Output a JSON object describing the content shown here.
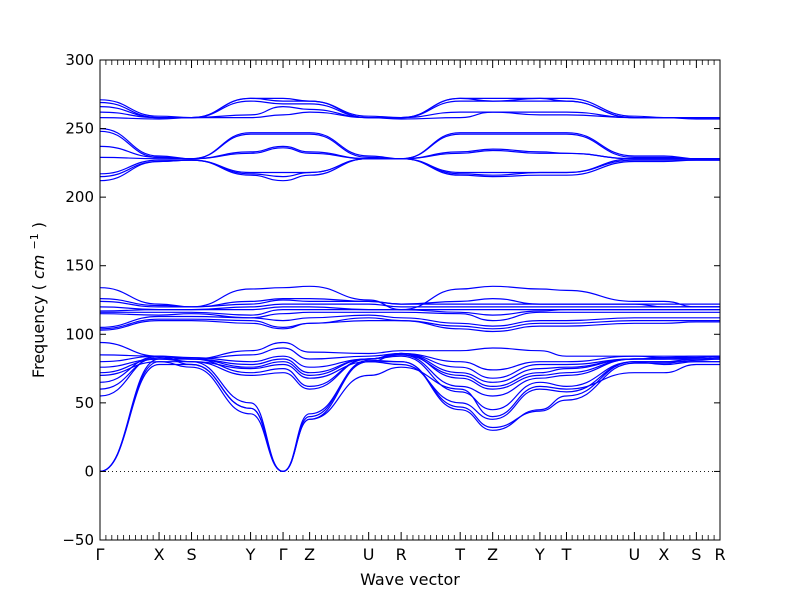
{
  "chart_data": {
    "type": "line",
    "xlabel": "Wave vector",
    "ylabel": "Frequency",
    "ylabel_unit": "cm",
    "ylabel_unit_exp": "−1",
    "ylim": [
      -50,
      300
    ],
    "yticks": [
      "−50",
      "0",
      "50",
      "100",
      "150",
      "200",
      "250",
      "300"
    ],
    "ytick_values": [
      -50,
      0,
      50,
      100,
      150,
      200,
      250,
      300
    ],
    "xlim": [
      0,
      21
    ],
    "high_symmetry_points": [
      {
        "label": "Γ",
        "x": 0
      },
      {
        "label": "X",
        "x": 2
      },
      {
        "label": "S",
        "x": 3.1
      },
      {
        "label": "Y",
        "x": 5.1
      },
      {
        "label": "Γ",
        "x": 6.2
      },
      {
        "label": "Z",
        "x": 7.1
      },
      {
        "label": "U",
        "x": 9.1
      },
      {
        "label": "R",
        "x": 10.2
      },
      {
        "label": "T",
        "x": 12.2
      },
      {
        "label": "Z",
        "x": 13.3
      },
      {
        "label": "Y",
        "x": 14.9
      },
      {
        "label": "T",
        "x": 15.8
      },
      {
        "label": "U",
        "x": 18.1
      },
      {
        "label": "X",
        "x": 19.1
      },
      {
        "label": "S",
        "x": 20.2
      },
      {
        "label": "R",
        "x": 21
      }
    ],
    "zero_line": true,
    "line_color": "#0000ff",
    "series": [
      {
        "values": [
          0,
          80,
          76,
          42,
          0,
          38,
          80,
          80,
          45,
          30,
          45,
          55,
          80,
          78,
          80,
          80
        ]
      },
      {
        "values": [
          0,
          78,
          78,
          46,
          0,
          40,
          81,
          80,
          47,
          32,
          44,
          52,
          79,
          79,
          81,
          82
        ]
      },
      {
        "values": [
          0,
          82,
          80,
          50,
          0,
          42,
          80,
          78,
          50,
          38,
          60,
          58,
          80,
          80,
          82,
          83
        ]
      },
      {
        "values": [
          55,
          84,
          78,
          46,
          0,
          38,
          70,
          76,
          60,
          40,
          62,
          60,
          72,
          72,
          78,
          78
        ]
      },
      {
        "values": [
          60,
          83,
          80,
          70,
          72,
          60,
          82,
          84,
          58,
          45,
          65,
          62,
          80,
          80,
          80,
          80
        ]
      },
      {
        "values": [
          65,
          84,
          82,
          72,
          75,
          62,
          82,
          85,
          62,
          55,
          68,
          70,
          82,
          82,
          82,
          82
        ]
      },
      {
        "values": [
          70,
          80,
          80,
          75,
          78,
          68,
          80,
          86,
          68,
          60,
          70,
          72,
          82,
          82,
          82,
          82
        ]
      },
      {
        "values": [
          72,
          82,
          82,
          76,
          80,
          70,
          82,
          85,
          70,
          62,
          72,
          75,
          82,
          83,
          83,
          84
        ]
      },
      {
        "values": [
          76,
          82,
          82,
          78,
          82,
          72,
          82,
          86,
          72,
          65,
          75,
          76,
          82,
          82,
          83,
          84
        ]
      },
      {
        "values": [
          80,
          84,
          83,
          80,
          84,
          76,
          82,
          86,
          76,
          68,
          78,
          78,
          82,
          82,
          82,
          82
        ]
      },
      {
        "values": [
          85,
          84,
          82,
          85,
          90,
          82,
          84,
          86,
          80,
          74,
          80,
          80,
          84,
          83,
          84,
          84
        ]
      },
      {
        "values": [
          94,
          84,
          82,
          88,
          94,
          87,
          86,
          88,
          88,
          90,
          88,
          84,
          84,
          84,
          84,
          84
        ]
      },
      {
        "values": [
          103,
          110,
          110,
          108,
          104,
          108,
          110,
          110,
          104,
          102,
          106,
          106,
          108,
          108,
          109,
          109
        ]
      },
      {
        "values": [
          104,
          111,
          111,
          110,
          105,
          108,
          112,
          110,
          106,
          104,
          108,
          108,
          110,
          110,
          110,
          110
        ]
      },
      {
        "values": [
          105,
          113,
          113,
          112,
          110,
          112,
          114,
          112,
          108,
          106,
          110,
          110,
          112,
          112,
          112,
          112
        ]
      },
      {
        "values": [
          115,
          114,
          115,
          112,
          115,
          116,
          116,
          116,
          115,
          110,
          116,
          116,
          116,
          116,
          116,
          116
        ]
      },
      {
        "values": [
          116,
          116,
          116,
          114,
          118,
          118,
          118,
          118,
          116,
          114,
          117,
          118,
          118,
          118,
          118,
          118
        ]
      },
      {
        "values": [
          117,
          118,
          118,
          118,
          120,
          120,
          118,
          118,
          118,
          118,
          118,
          118,
          118,
          118,
          118,
          118
        ]
      },
      {
        "values": [
          120,
          118,
          118,
          120,
          122,
          122,
          122,
          120,
          120,
          120,
          120,
          120,
          120,
          120,
          120,
          120
        ]
      },
      {
        "values": [
          124,
          120,
          120,
          122,
          125,
          124,
          124,
          122,
          122,
          122,
          122,
          122,
          122,
          122,
          122,
          122
        ]
      },
      {
        "values": [
          126,
          121,
          120,
          124,
          126,
          126,
          124,
          122,
          124,
          126,
          122,
          122,
          122,
          120,
          120,
          120
        ]
      },
      {
        "values": [
          134,
          122,
          120,
          133,
          134,
          135,
          125,
          118,
          133,
          135,
          133,
          132,
          124,
          124,
          120,
          120
        ]
      },
      {
        "values": [
          212,
          226,
          227,
          216,
          212,
          216,
          228,
          228,
          216,
          215,
          216,
          216,
          226,
          226,
          227,
          227
        ]
      },
      {
        "values": [
          215,
          226,
          227,
          217,
          215,
          218,
          228,
          228,
          217,
          216,
          218,
          218,
          227,
          227,
          227,
          227
        ]
      },
      {
        "values": [
          217,
          227,
          227,
          218,
          218,
          218,
          228,
          228,
          218,
          218,
          218,
          218,
          228,
          228,
          228,
          228
        ]
      },
      {
        "values": [
          229,
          228,
          228,
          232,
          236,
          232,
          228,
          228,
          232,
          234,
          232,
          232,
          228,
          228,
          228,
          228
        ]
      },
      {
        "values": [
          237,
          229,
          228,
          233,
          237,
          233,
          228,
          228,
          233,
          235,
          233,
          232,
          228,
          228,
          228,
          228
        ]
      },
      {
        "values": [
          248,
          229,
          228,
          246,
          246,
          246,
          229,
          228,
          246,
          246,
          246,
          246,
          229,
          229,
          228,
          228
        ]
      },
      {
        "values": [
          250,
          230,
          228,
          247,
          247,
          247,
          230,
          228,
          247,
          247,
          247,
          247,
          230,
          230,
          228,
          228
        ]
      },
      {
        "values": [
          258,
          257,
          258,
          258,
          260,
          262,
          258,
          257,
          258,
          262,
          260,
          260,
          258,
          258,
          257,
          257
        ]
      },
      {
        "values": [
          262,
          258,
          258,
          260,
          266,
          264,
          258,
          258,
          262,
          262,
          262,
          262,
          258,
          258,
          258,
          258
        ]
      },
      {
        "values": [
          266,
          258,
          258,
          270,
          268,
          268,
          258,
          258,
          270,
          270,
          270,
          270,
          258,
          258,
          258,
          258
        ]
      },
      {
        "values": [
          269,
          258,
          258,
          272,
          270,
          270,
          258,
          258,
          272,
          270,
          272,
          270,
          258,
          258,
          258,
          258
        ]
      },
      {
        "values": [
          271,
          259,
          258,
          272,
          272,
          270,
          259,
          258,
          272,
          272,
          272,
          272,
          259,
          258,
          258,
          258
        ]
      }
    ]
  }
}
